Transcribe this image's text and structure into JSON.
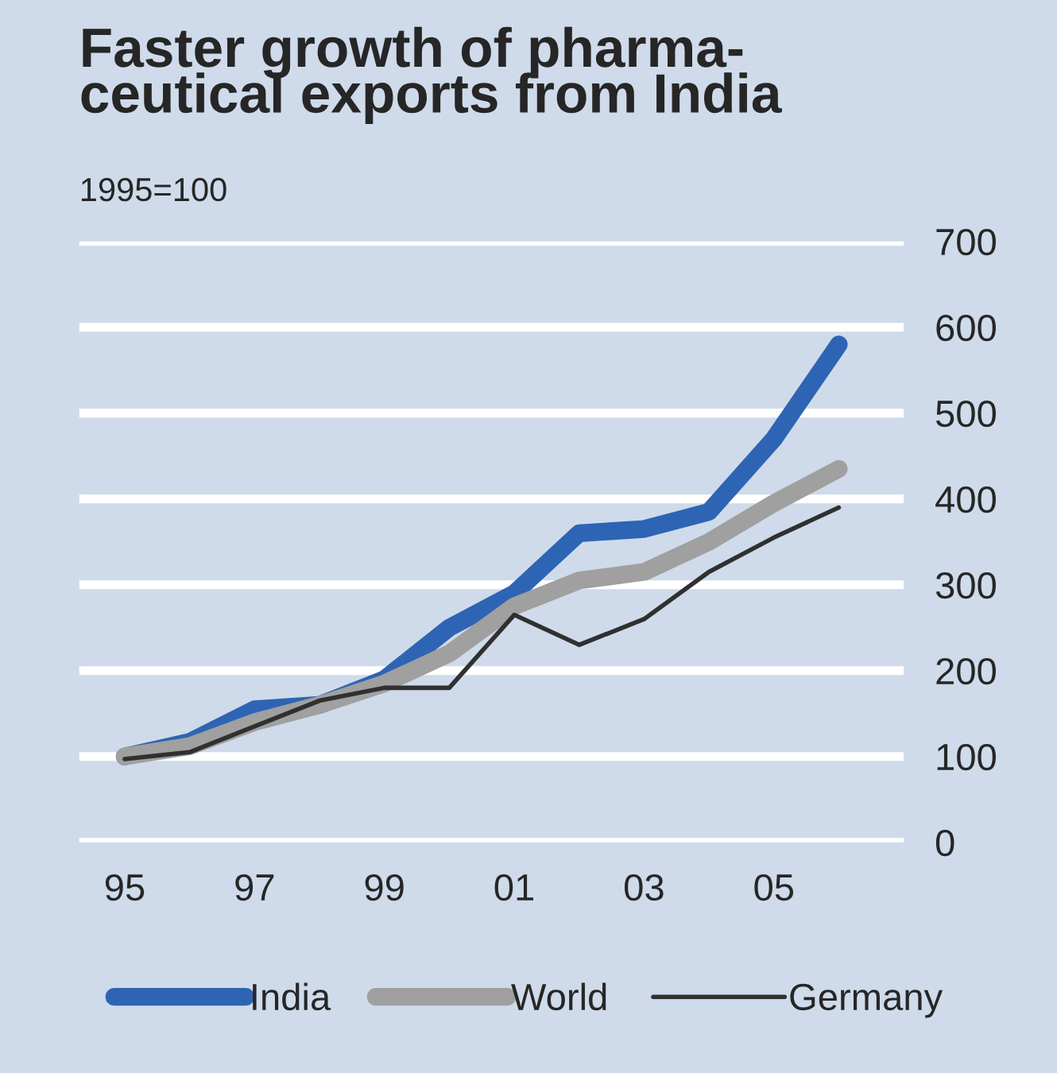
{
  "chart_data": {
    "type": "line",
    "title": "Faster growth of pharma-\nceutical exports from India",
    "subtitle": "1995=100",
    "x": [
      1995,
      1996,
      1997,
      1998,
      1999,
      2000,
      2001,
      2002,
      2003,
      2004,
      2005,
      2006
    ],
    "series": [
      {
        "name": "India",
        "color": "#2e64b4",
        "values": [
          100,
          117,
          155,
          160,
          190,
          250,
          290,
          360,
          365,
          385,
          470,
          580
        ]
      },
      {
        "name": "World",
        "color": "#a0a0a0",
        "values": [
          100,
          112,
          140,
          160,
          185,
          220,
          275,
          305,
          315,
          350,
          395,
          435
        ]
      },
      {
        "name": "Germany",
        "color": "#303030",
        "values": [
          97,
          105,
          135,
          165,
          180,
          180,
          265,
          230,
          260,
          315,
          355,
          390
        ]
      }
    ],
    "xlim": [
      1994.3,
      2007
    ],
    "xticks": [
      {
        "value": 1995,
        "label": "95"
      },
      {
        "value": 1997,
        "label": "97"
      },
      {
        "value": 1999,
        "label": "99"
      },
      {
        "value": 2001,
        "label": "01"
      },
      {
        "value": 2003,
        "label": "03"
      },
      {
        "value": 2005,
        "label": "05"
      }
    ],
    "ylim": [
      0,
      700
    ],
    "yticks": [
      0,
      100,
      200,
      300,
      400,
      500,
      600,
      700
    ],
    "grid": "y",
    "legend": "bottom",
    "marker": "none",
    "line_style": "solid"
  }
}
